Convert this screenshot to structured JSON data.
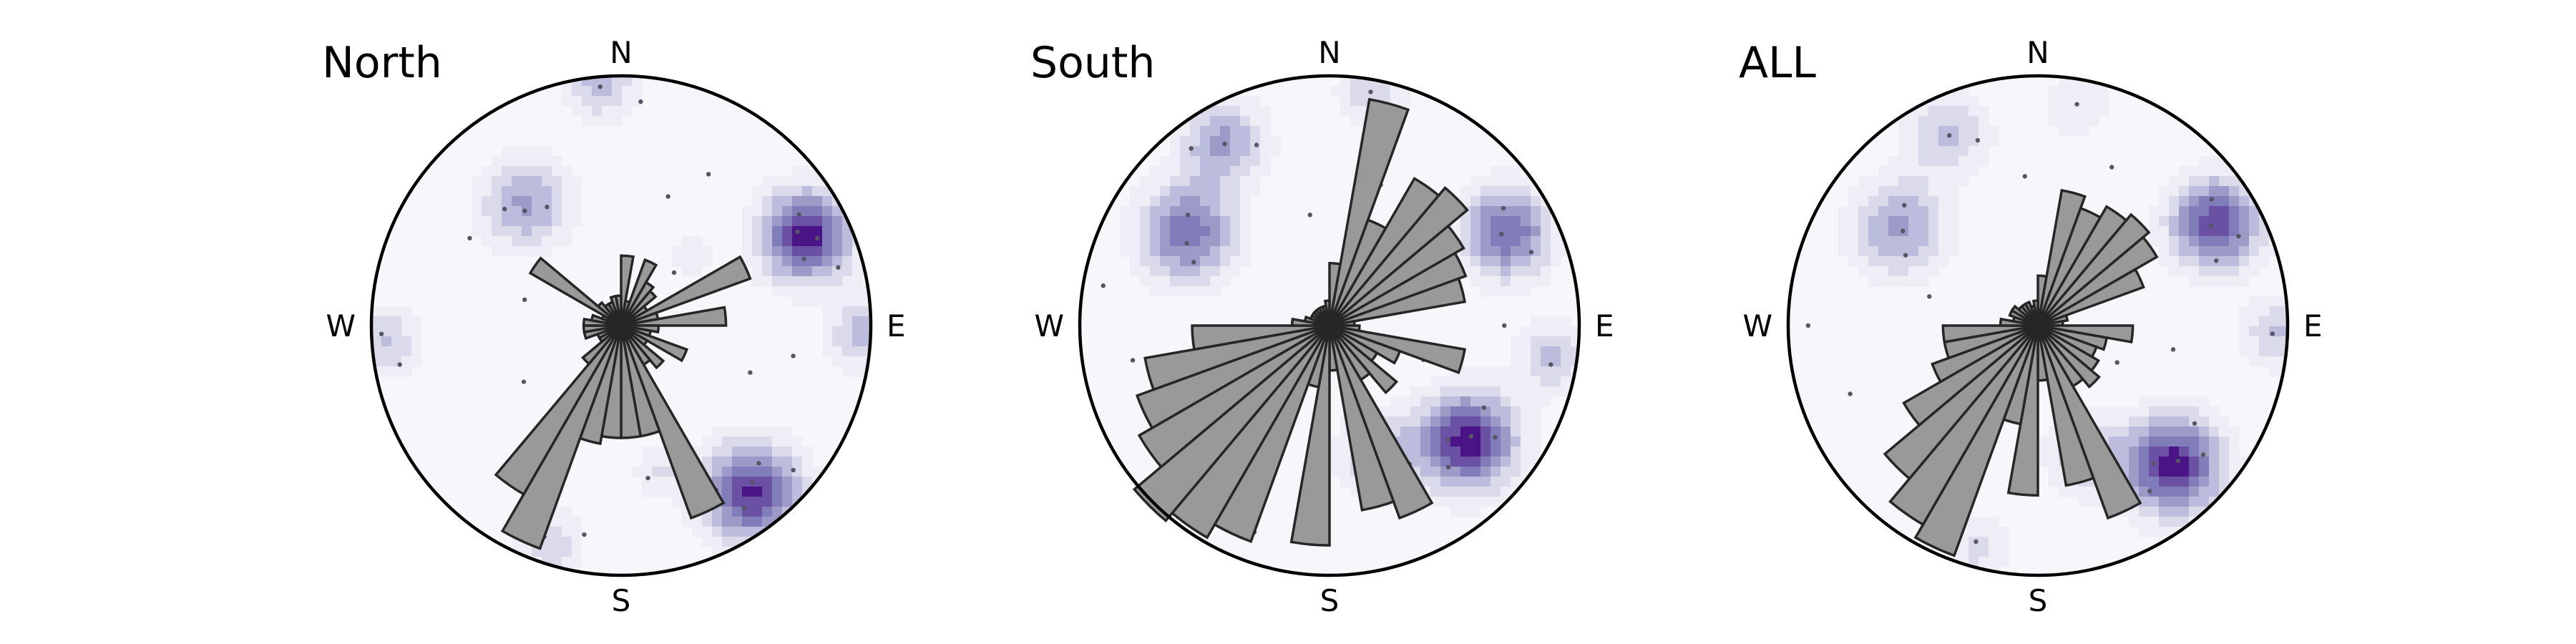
{
  "figure": {
    "panel_titles": [
      "North",
      "South",
      "ALL"
    ]
  },
  "colors": {
    "background": "#f7f7fb",
    "density_ramp": [
      "#efedf5",
      "#dadaeb",
      "#bcbddc",
      "#9e9ac8",
      "#807dba",
      "#6a51a3",
      "#4a1486"
    ],
    "petal_fill": "#999999",
    "petal_edge": "#262626"
  },
  "chart_data": [
    {
      "type": "rose",
      "title": "North",
      "projection": "equal-area stereonet",
      "cardinal_labels": [
        "N",
        "E",
        "S",
        "W"
      ],
      "bin_width_deg": 10,
      "petals": [
        {
          "az": 5,
          "r": 0.28
        },
        {
          "az": 15,
          "r": 0.1
        },
        {
          "az": 25,
          "r": 0.28
        },
        {
          "az": 35,
          "r": 0.2
        },
        {
          "az": 45,
          "r": 0.18
        },
        {
          "az": 55,
          "r": 0.12
        },
        {
          "az": 65,
          "r": 0.55
        },
        {
          "az": 75,
          "r": 0.15
        },
        {
          "az": 85,
          "r": 0.42
        },
        {
          "az": 95,
          "r": 0.15
        },
        {
          "az": 105,
          "r": 0.12
        },
        {
          "az": 115,
          "r": 0.28
        },
        {
          "az": 125,
          "r": 0.12
        },
        {
          "az": 135,
          "r": 0.22
        },
        {
          "az": 145,
          "r": 0.18
        },
        {
          "az": 155,
          "r": 0.82
        },
        {
          "az": 165,
          "r": 0.45
        },
        {
          "az": 175,
          "r": 0.45
        },
        {
          "az": 185,
          "r": 0.45
        },
        {
          "az": 195,
          "r": 0.48
        },
        {
          "az": 205,
          "r": 0.95
        },
        {
          "az": 215,
          "r": 0.78
        },
        {
          "az": 225,
          "r": 0.2
        },
        {
          "az": 235,
          "r": 0.1
        },
        {
          "az": 245,
          "r": 0.1
        },
        {
          "az": 255,
          "r": 0.15
        },
        {
          "az": 265,
          "r": 0.15
        },
        {
          "az": 275,
          "r": 0.15
        },
        {
          "az": 285,
          "r": 0.12
        },
        {
          "az": 295,
          "r": 0.08
        },
        {
          "az": 305,
          "r": 0.42
        },
        {
          "az": 315,
          "r": 0.12
        },
        {
          "az": 325,
          "r": 0.1
        },
        {
          "az": 335,
          "r": 0.1
        },
        {
          "az": 345,
          "r": 0.12
        },
        {
          "az": 355,
          "r": 0.12
        }
      ],
      "density": [
        {
          "az": 64,
          "dist": 0.82,
          "sigma": 0.13,
          "w": 1.0
        },
        {
          "az": 142,
          "dist": 0.85,
          "sigma": 0.14,
          "w": 0.95
        },
        {
          "az": 92,
          "dist": 0.97,
          "sigma": 0.1,
          "w": 0.45
        },
        {
          "az": 322,
          "dist": 0.62,
          "sigma": 0.13,
          "w": 0.55
        },
        {
          "az": 355,
          "dist": 0.97,
          "sigma": 0.1,
          "w": 0.45
        },
        {
          "az": 266,
          "dist": 0.95,
          "sigma": 0.1,
          "w": 0.4
        },
        {
          "az": 198,
          "dist": 0.92,
          "sigma": 0.1,
          "w": 0.35
        },
        {
          "az": 165,
          "dist": 0.6,
          "sigma": 0.08,
          "w": 0.25
        },
        {
          "az": 45,
          "dist": 0.4,
          "sigma": 0.07,
          "w": 0.2
        }
      ],
      "poles": [
        {
          "az": 62,
          "dist": 0.8
        },
        {
          "az": 66,
          "dist": 0.86
        },
        {
          "az": 70,
          "dist": 0.78
        },
        {
          "az": 58,
          "dist": 0.84
        },
        {
          "az": 75,
          "dist": 0.9
        },
        {
          "az": 140,
          "dist": 0.82
        },
        {
          "az": 146,
          "dist": 0.88
        },
        {
          "az": 135,
          "dist": 0.78
        },
        {
          "az": 150,
          "dist": 0.76
        },
        {
          "az": 130,
          "dist": 0.9
        },
        {
          "az": 320,
          "dist": 0.6
        },
        {
          "az": 315,
          "dist": 0.66
        },
        {
          "az": 328,
          "dist": 0.56
        },
        {
          "az": 300,
          "dist": 0.7
        },
        {
          "az": 355,
          "dist": 0.96
        },
        {
          "az": 5,
          "dist": 0.9
        },
        {
          "az": 268,
          "dist": 0.96
        },
        {
          "az": 260,
          "dist": 0.9
        },
        {
          "az": 200,
          "dist": 0.9
        },
        {
          "az": 190,
          "dist": 0.85
        },
        {
          "az": 30,
          "dist": 0.7
        },
        {
          "az": 20,
          "dist": 0.55
        },
        {
          "az": 100,
          "dist": 0.7
        },
        {
          "az": 110,
          "dist": 0.55
        },
        {
          "az": 170,
          "dist": 0.62
        },
        {
          "az": 240,
          "dist": 0.45
        },
        {
          "az": 285,
          "dist": 0.4
        },
        {
          "az": 45,
          "dist": 0.3
        }
      ]
    },
    {
      "type": "rose",
      "title": "South",
      "projection": "equal-area stereonet",
      "cardinal_labels": [
        "N",
        "E",
        "S",
        "W"
      ],
      "bin_width_deg": 10,
      "petals": [
        {
          "az": 5,
          "r": 0.25
        },
        {
          "az": 15,
          "r": 0.92
        },
        {
          "az": 25,
          "r": 0.45
        },
        {
          "az": 35,
          "r": 0.68
        },
        {
          "az": 45,
          "r": 0.72
        },
        {
          "az": 55,
          "r": 0.62
        },
        {
          "az": 65,
          "r": 0.58
        },
        {
          "az": 75,
          "r": 0.55
        },
        {
          "az": 85,
          "r": 0.1
        },
        {
          "az": 95,
          "r": 0.12
        },
        {
          "az": 105,
          "r": 0.55
        },
        {
          "az": 115,
          "r": 0.3
        },
        {
          "az": 125,
          "r": 0.22
        },
        {
          "az": 135,
          "r": 0.35
        },
        {
          "az": 145,
          "r": 0.25
        },
        {
          "az": 155,
          "r": 0.82
        },
        {
          "az": 165,
          "r": 0.75
        },
        {
          "az": 175,
          "r": 0.18
        },
        {
          "az": 185,
          "r": 0.88
        },
        {
          "az": 195,
          "r": 0.25
        },
        {
          "az": 205,
          "r": 0.92
        },
        {
          "az": 215,
          "r": 0.98
        },
        {
          "az": 225,
          "r": 1.02
        },
        {
          "az": 235,
          "r": 0.88
        },
        {
          "az": 245,
          "r": 0.82
        },
        {
          "az": 255,
          "r": 0.75
        },
        {
          "az": 265,
          "r": 0.55
        },
        {
          "az": 275,
          "r": 0.15
        },
        {
          "az": 285,
          "r": 0.1
        },
        {
          "az": 295,
          "r": 0.08
        },
        {
          "az": 305,
          "r": 0.08
        },
        {
          "az": 315,
          "r": 0.08
        },
        {
          "az": 325,
          "r": 0.08
        },
        {
          "az": 335,
          "r": 0.08
        },
        {
          "az": 345,
          "r": 0.08
        },
        {
          "az": 355,
          "r": 0.1
        }
      ],
      "density": [
        {
          "az": 130,
          "dist": 0.72,
          "sigma": 0.14,
          "w": 1.0
        },
        {
          "az": 62,
          "dist": 0.8,
          "sigma": 0.13,
          "w": 0.8
        },
        {
          "az": 303,
          "dist": 0.68,
          "sigma": 0.14,
          "w": 0.75
        },
        {
          "az": 330,
          "dist": 0.85,
          "sigma": 0.12,
          "w": 0.55
        },
        {
          "az": 10,
          "dist": 0.96,
          "sigma": 0.1,
          "w": 0.35
        },
        {
          "az": 160,
          "dist": 0.55,
          "sigma": 0.12,
          "w": 0.4
        },
        {
          "az": 98,
          "dist": 0.9,
          "sigma": 0.1,
          "w": 0.4
        },
        {
          "az": 235,
          "dist": 0.7,
          "sigma": 0.09,
          "w": 0.2
        }
      ],
      "poles": [
        {
          "az": 128,
          "dist": 0.72
        },
        {
          "az": 134,
          "dist": 0.66
        },
        {
          "az": 124,
          "dist": 0.8
        },
        {
          "az": 140,
          "dist": 0.74
        },
        {
          "az": 118,
          "dist": 0.7
        },
        {
          "az": 150,
          "dist": 0.64
        },
        {
          "az": 62,
          "dist": 0.78
        },
        {
          "az": 56,
          "dist": 0.84
        },
        {
          "az": 70,
          "dist": 0.86
        },
        {
          "az": 300,
          "dist": 0.66
        },
        {
          "az": 308,
          "dist": 0.72
        },
        {
          "az": 295,
          "dist": 0.6
        },
        {
          "az": 330,
          "dist": 0.84
        },
        {
          "az": 322,
          "dist": 0.9
        },
        {
          "az": 338,
          "dist": 0.78
        },
        {
          "az": 10,
          "dist": 0.95
        },
        {
          "az": 160,
          "dist": 0.55
        },
        {
          "az": 165,
          "dist": 0.48
        },
        {
          "az": 100,
          "dist": 0.9
        },
        {
          "az": 90,
          "dist": 0.7
        },
        {
          "az": 235,
          "dist": 0.7
        },
        {
          "az": 260,
          "dist": 0.8
        },
        {
          "az": 280,
          "dist": 0.92
        },
        {
          "az": 200,
          "dist": 0.88
        },
        {
          "az": 40,
          "dist": 0.5
        },
        {
          "az": 20,
          "dist": 0.6
        },
        {
          "az": 350,
          "dist": 0.45
        },
        {
          "az": 110,
          "dist": 0.4
        }
      ]
    },
    {
      "type": "rose",
      "title": "ALL",
      "projection": "equal-area stereonet",
      "cardinal_labels": [
        "N",
        "E",
        "S",
        "W"
      ],
      "bin_width_deg": 10,
      "petals": [
        {
          "az": 5,
          "r": 0.2
        },
        {
          "az": 15,
          "r": 0.55
        },
        {
          "az": 25,
          "r": 0.5
        },
        {
          "az": 35,
          "r": 0.55
        },
        {
          "az": 45,
          "r": 0.58
        },
        {
          "az": 55,
          "r": 0.55
        },
        {
          "az": 65,
          "r": 0.45
        },
        {
          "az": 75,
          "r": 0.12
        },
        {
          "az": 85,
          "r": 0.1
        },
        {
          "az": 95,
          "r": 0.38
        },
        {
          "az": 105,
          "r": 0.28
        },
        {
          "az": 115,
          "r": 0.25
        },
        {
          "az": 125,
          "r": 0.28
        },
        {
          "az": 135,
          "r": 0.32
        },
        {
          "az": 145,
          "r": 0.28
        },
        {
          "az": 155,
          "r": 0.82
        },
        {
          "az": 165,
          "r": 0.65
        },
        {
          "az": 175,
          "r": 0.22
        },
        {
          "az": 185,
          "r": 0.68
        },
        {
          "az": 195,
          "r": 0.4
        },
        {
          "az": 205,
          "r": 0.98
        },
        {
          "az": 215,
          "r": 0.92
        },
        {
          "az": 225,
          "r": 0.8
        },
        {
          "az": 235,
          "r": 0.62
        },
        {
          "az": 245,
          "r": 0.45
        },
        {
          "az": 255,
          "r": 0.38
        },
        {
          "az": 265,
          "r": 0.38
        },
        {
          "az": 275,
          "r": 0.15
        },
        {
          "az": 285,
          "r": 0.1
        },
        {
          "az": 295,
          "r": 0.12
        },
        {
          "az": 305,
          "r": 0.12
        },
        {
          "az": 315,
          "r": 0.1
        },
        {
          "az": 325,
          "r": 0.1
        },
        {
          "az": 335,
          "r": 0.1
        },
        {
          "az": 345,
          "r": 0.08
        },
        {
          "az": 355,
          "r": 0.1
        }
      ],
      "density": [
        {
          "az": 136,
          "dist": 0.78,
          "sigma": 0.14,
          "w": 1.0
        },
        {
          "az": 60,
          "dist": 0.82,
          "sigma": 0.13,
          "w": 0.9
        },
        {
          "az": 305,
          "dist": 0.68,
          "sigma": 0.14,
          "w": 0.55
        },
        {
          "az": 335,
          "dist": 0.85,
          "sigma": 0.12,
          "w": 0.4
        },
        {
          "az": 92,
          "dist": 0.96,
          "sigma": 0.1,
          "w": 0.4
        },
        {
          "az": 195,
          "dist": 0.92,
          "sigma": 0.1,
          "w": 0.3
        },
        {
          "az": 160,
          "dist": 0.55,
          "sigma": 0.12,
          "w": 0.35
        },
        {
          "az": 10,
          "dist": 0.9,
          "sigma": 0.1,
          "w": 0.25
        }
      ],
      "poles": [
        {
          "az": 134,
          "dist": 0.78
        },
        {
          "az": 140,
          "dist": 0.72
        },
        {
          "az": 128,
          "dist": 0.84
        },
        {
          "az": 146,
          "dist": 0.8
        },
        {
          "az": 122,
          "dist": 0.74
        },
        {
          "az": 60,
          "dist": 0.8
        },
        {
          "az": 54,
          "dist": 0.86
        },
        {
          "az": 66,
          "dist": 0.88
        },
        {
          "az": 70,
          "dist": 0.76
        },
        {
          "az": 305,
          "dist": 0.66
        },
        {
          "az": 312,
          "dist": 0.72
        },
        {
          "az": 298,
          "dist": 0.6
        },
        {
          "az": 335,
          "dist": 0.84
        },
        {
          "az": 342,
          "dist": 0.78
        },
        {
          "az": 92,
          "dist": 0.94
        },
        {
          "az": 196,
          "dist": 0.9
        },
        {
          "az": 160,
          "dist": 0.55
        },
        {
          "az": 168,
          "dist": 0.6
        },
        {
          "az": 10,
          "dist": 0.9
        },
        {
          "az": 25,
          "dist": 0.7
        },
        {
          "az": 250,
          "dist": 0.8
        },
        {
          "az": 270,
          "dist": 0.92
        },
        {
          "az": 225,
          "dist": 0.65
        },
        {
          "az": 100,
          "dist": 0.55
        },
        {
          "az": 40,
          "dist": 0.45
        },
        {
          "az": 355,
          "dist": 0.6
        },
        {
          "az": 115,
          "dist": 0.35
        },
        {
          "az": 285,
          "dist": 0.45
        }
      ]
    }
  ]
}
